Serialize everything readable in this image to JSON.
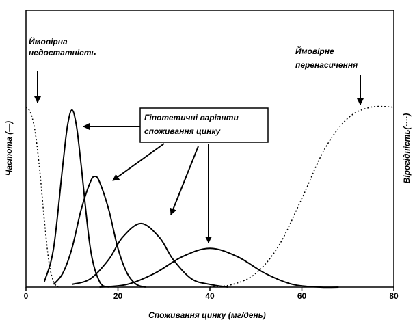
{
  "chart_data": {
    "type": "line",
    "xlabel": "Споживання цинку (мг/день)",
    "ylabel": "Частота (—)",
    "y2label": "Вірогідність(····)",
    "xlim": [
      0,
      80
    ],
    "xticks": [
      0,
      20,
      40,
      60,
      80
    ],
    "ylim": [
      0,
      1
    ],
    "annotations": [
      {
        "lines": [
          "Ймовірна",
          "недостатність"
        ]
      },
      {
        "lines": [
          "Ймовірне",
          "перенасичення"
        ]
      },
      {
        "lines": [
          "Гіпотетичні варіанти",
          "споживання цинку"
        ]
      }
    ],
    "series": [
      {
        "color": "#000000",
        "style": "solid",
        "x": [
          4,
          6,
          8,
          9,
          10,
          11,
          12,
          14,
          16,
          18
        ],
        "values": [
          0.02,
          0.14,
          0.44,
          0.58,
          0.64,
          0.58,
          0.44,
          0.14,
          0.02,
          0
        ]
      },
      {
        "color": "#000000",
        "style": "solid",
        "x": [
          6,
          8,
          10,
          12,
          14,
          15,
          16,
          18,
          20,
          22,
          24,
          26
        ],
        "values": [
          0.01,
          0.05,
          0.14,
          0.28,
          0.38,
          0.4,
          0.38,
          0.28,
          0.14,
          0.05,
          0.01,
          0
        ]
      },
      {
        "color": "#000000",
        "style": "solid",
        "x": [
          10,
          14,
          18,
          21,
          25,
          29,
          32,
          36,
          40,
          44
        ],
        "values": [
          0.01,
          0.03,
          0.1,
          0.18,
          0.23,
          0.18,
          0.1,
          0.03,
          0.01,
          0
        ]
      },
      {
        "color": "#000000",
        "style": "solid",
        "x": [
          16,
          22,
          28,
          34,
          40,
          46,
          52,
          58,
          64,
          68
        ],
        "values": [
          0,
          0.01,
          0.05,
          0.11,
          0.14,
          0.11,
          0.05,
          0.01,
          0,
          0
        ]
      },
      {
        "color": "#000000",
        "style": "dotted",
        "x": [
          0,
          1,
          2,
          3,
          4,
          5,
          6,
          7
        ],
        "values": [
          0.65,
          0.63,
          0.56,
          0.42,
          0.24,
          0.09,
          0.02,
          0
        ]
      },
      {
        "color": "#000000",
        "style": "dotted",
        "x": [
          40,
          45,
          50,
          55,
          60,
          65,
          70,
          75,
          80
        ],
        "values": [
          0,
          0.01,
          0.05,
          0.15,
          0.32,
          0.5,
          0.61,
          0.65,
          0.65
        ]
      }
    ]
  }
}
